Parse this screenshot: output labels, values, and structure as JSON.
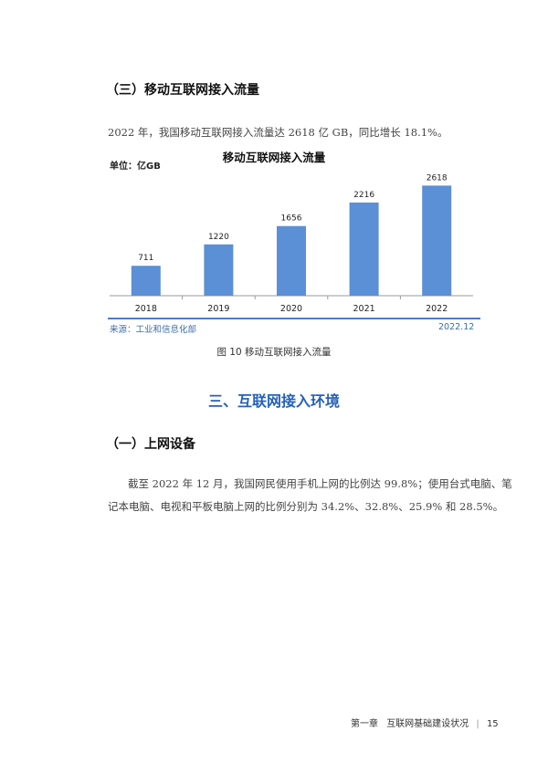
{
  "subsection1": {
    "title": "（三）移动互联网接入流量"
  },
  "para1": "2022 年，我国移动互联网接入流量达 2618 亿 GB，同比增长 18.1%。",
  "chart_data": {
    "type": "bar",
    "title": "移动互联网接入流量",
    "unit_label": "单位：亿GB",
    "categories": [
      "2018",
      "2019",
      "2020",
      "2021",
      "2022"
    ],
    "values": [
      711,
      1220,
      1656,
      2216,
      2618
    ],
    "ylim": [
      0,
      2800
    ],
    "bar_color": "#5b8fd6",
    "source": "来源：工业和信息化部",
    "date": "2022.12",
    "grid": false
  },
  "figure_caption": "图 10  移动互联网接入流量",
  "section3": {
    "title": "三、互联网接入环境"
  },
  "subsection2": {
    "title": "（一）上网设备"
  },
  "para2_line1": "截至 2022 年 12 月，我国网民使用手机上网的比例达 99.8%；使用台式电脑、笔",
  "para2_line2": "记本电脑、电视和平板电脑上网的比例分别为 34.2%、32.8%、25.9% 和 28.5%。",
  "footer": {
    "chapter": "第一章",
    "chapter_title": "互联网基础建设状况",
    "page": "15"
  },
  "colors": {
    "accent": "#2561b8",
    "source_text": "#3a6ea8"
  }
}
